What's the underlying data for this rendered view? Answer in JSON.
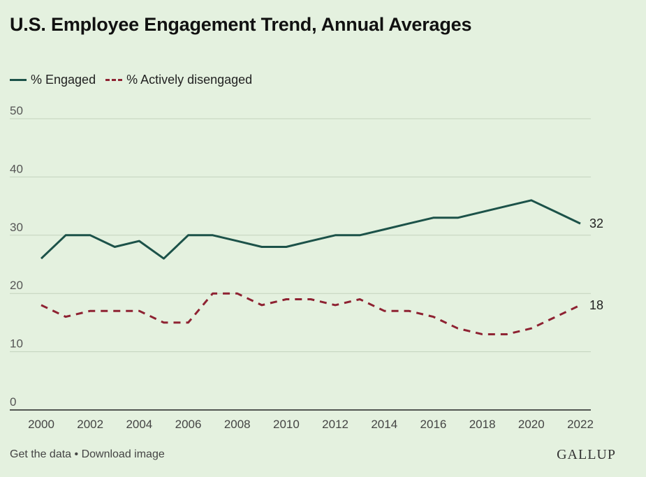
{
  "chart_data": {
    "type": "line",
    "title": "U.S. Employee Engagement Trend, Annual Averages",
    "x": [
      2000,
      2001,
      2002,
      2003,
      2004,
      2005,
      2006,
      2007,
      2008,
      2009,
      2010,
      2011,
      2012,
      2013,
      2014,
      2015,
      2016,
      2017,
      2018,
      2019,
      2020,
      2021,
      2022
    ],
    "series": [
      {
        "name": "% Engaged",
        "color": "#1c5249",
        "style": "solid",
        "values": [
          26,
          30,
          30,
          28,
          29,
          26,
          30,
          30,
          29,
          28,
          28,
          29,
          30,
          30,
          31,
          32,
          33,
          33,
          34,
          35,
          36,
          34,
          32
        ],
        "end_label": "32"
      },
      {
        "name": "% Actively disengaged",
        "color": "#8e2232",
        "style": "dashed",
        "values": [
          18,
          16,
          17,
          17,
          17,
          15,
          15,
          20,
          20,
          18,
          19,
          19,
          18,
          19,
          17,
          17,
          16,
          14,
          13,
          13,
          14,
          16,
          18
        ],
        "end_label": "18"
      }
    ],
    "xlim": [
      2000,
      2022
    ],
    "ylim": [
      0,
      50
    ],
    "yticks": [
      "0",
      "10",
      "20",
      "30",
      "40",
      "50"
    ],
    "xticks": [
      "2000",
      "2002",
      "2004",
      "2006",
      "2008",
      "2010",
      "2012",
      "2014",
      "2016",
      "2018",
      "2020",
      "2022"
    ],
    "grid": true,
    "legend_position": "top-left"
  },
  "footer": {
    "get_data": "Get the data",
    "separator": " • ",
    "download": "Download image"
  },
  "brand": {
    "logo_text": "GALLUP"
  }
}
